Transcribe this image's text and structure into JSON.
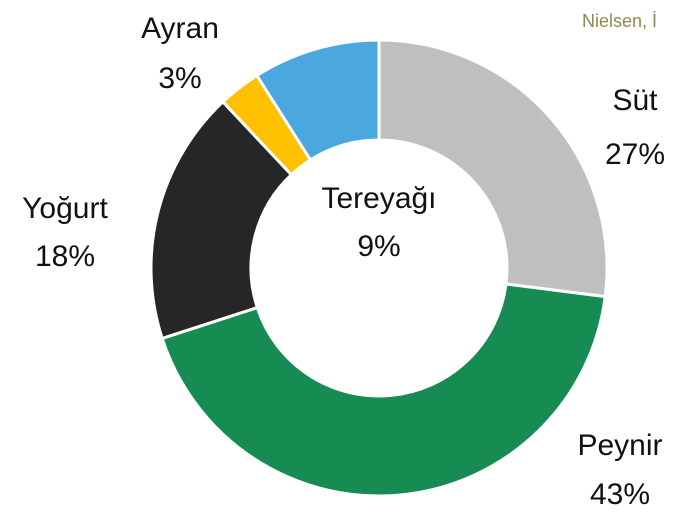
{
  "chart_data": {
    "type": "donut",
    "source": "Nielsen, İ",
    "categories": [
      "Süt",
      "Peynir",
      "Yoğurt",
      "Ayran",
      "Tereyağı"
    ],
    "values": [
      27,
      43,
      18,
      3,
      9
    ],
    "value_labels": [
      "27%",
      "43%",
      "18%",
      "3%",
      "9%"
    ],
    "colors": [
      "#bfbfbf",
      "#178c52",
      "#262626",
      "#ffc000",
      "#4aa8df"
    ]
  }
}
